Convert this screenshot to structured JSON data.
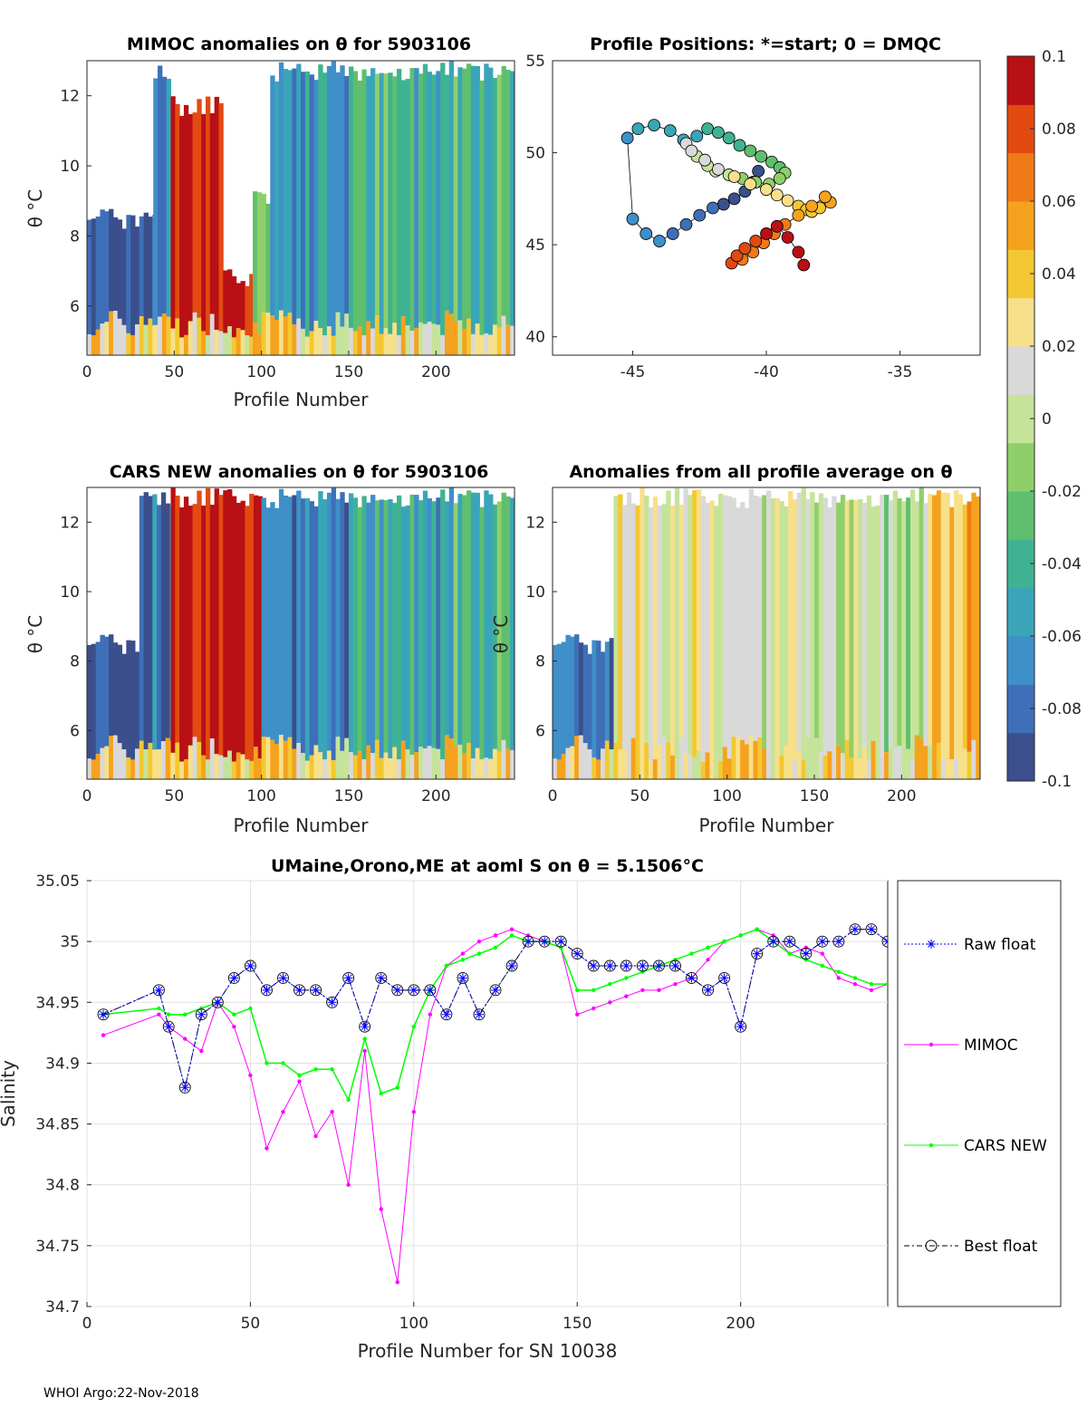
{
  "footer": "WHOI Argo:22-Nov-2018",
  "colors": {
    "mimoc": "#ff00ff",
    "cars": "#00ff00",
    "raw": "#0000ff",
    "best": "#000000",
    "colormap": [
      "#3b4f8c",
      "#3e6fb8",
      "#3f8fc9",
      "#3aa5b8",
      "#3fb391",
      "#5fbf6e",
      "#8fcf6a",
      "#c6e39a",
      "#d9d9d9",
      "#f6e08a",
      "#f3c832",
      "#f5a21e",
      "#f07a15",
      "#e24a12",
      "#b81014"
    ]
  },
  "panels": {
    "mimoc": {
      "title": "MIMOC anomalies on θ  for 5903106",
      "xlabel": "Profile Number",
      "ylabel": "θ °C",
      "xticks": [
        "0",
        "50",
        "100",
        "150",
        "200"
      ],
      "yticks": [
        "6",
        "8",
        "10",
        "12"
      ]
    },
    "positions": {
      "title": "Profile Positions: *=start; 0 = DMQC",
      "xticks": [
        "-45",
        "-40",
        "-35"
      ],
      "yticks": [
        "40",
        "45",
        "50",
        "55"
      ]
    },
    "cars": {
      "title": "CARS NEW anomalies on θ for 5903106",
      "xlabel": "Profile Number",
      "ylabel": "θ °C",
      "xticks": [
        "0",
        "50",
        "100",
        "150",
        "200"
      ],
      "yticks": [
        "6",
        "8",
        "10",
        "12"
      ]
    },
    "allavg": {
      "title": "Anomalies from all profile average on θ",
      "xlabel": "Profile Number",
      "ylabel": "θ °C",
      "xticks": [
        "0",
        "50",
        "100",
        "150",
        "200"
      ],
      "yticks": [
        "6",
        "8",
        "10",
        "12"
      ]
    }
  },
  "colorbar": {
    "ticks": [
      "0.1",
      "0.08",
      "0.06",
      "0.04",
      "0.02",
      "0",
      "-0.02",
      "-0.04",
      "-0.06",
      "-0.08",
      "-0.1"
    ]
  },
  "chart_data": [
    {
      "type": "heatmap",
      "name": "mimoc-anomalies",
      "title": "MIMOC anomalies on θ  for 5903106",
      "xlabel": "Profile Number",
      "ylabel": "θ °C",
      "xlim": [
        0,
        245
      ],
      "ylim": [
        4.6,
        13
      ],
      "clim": [
        -0.1,
        0.1
      ],
      "segments": [
        {
          "x": [
            0,
            38
          ],
          "ytop": 8.8,
          "v": -0.085
        },
        {
          "x": [
            38,
            48
          ],
          "ytop": 13,
          "v": -0.07
        },
        {
          "x": [
            48,
            78
          ],
          "ytop": 12,
          "v": 0.1
        },
        {
          "x": [
            78,
            95
          ],
          "ytop": 7.1,
          "v": 0.1
        },
        {
          "x": [
            95,
            105
          ],
          "ytop": 9.5,
          "v": -0.02
        },
        {
          "x": [
            105,
            150
          ],
          "ytop": 13,
          "v": -0.06
        },
        {
          "x": [
            150,
            210
          ],
          "ytop": 13,
          "v": -0.04
        },
        {
          "x": [
            210,
            245
          ],
          "ytop": 13,
          "v": -0.03
        }
      ]
    },
    {
      "type": "scatter",
      "name": "profile-positions",
      "title": "Profile Positions: *=start; 0 = DMQC",
      "xlim": [
        -48,
        -32
      ],
      "ylim": [
        39,
        55
      ],
      "colorby": "profile-number",
      "lon": [
        -40.3,
        -40.5,
        -40.8,
        -41.2,
        -41.6,
        -42.0,
        -42.5,
        -43.0,
        -43.5,
        -44.0,
        -44.5,
        -45.0,
        -45.2,
        -44.8,
        -44.2,
        -43.6,
        -43.1,
        -42.6,
        -42.2,
        -41.8,
        -41.4,
        -41.0,
        -40.6,
        -40.2,
        -39.8,
        -39.5,
        -39.3,
        -39.5,
        -39.9,
        -40.4,
        -40.9,
        -41.4,
        -41.9,
        -42.2,
        -42.6,
        -43.0,
        -42.8,
        -42.3,
        -41.8,
        -41.2,
        -40.6,
        -40.0,
        -39.6,
        -39.2,
        -38.8,
        -38.5,
        -38.3,
        -38.0,
        -37.6,
        -37.8,
        -38.3,
        -38.8,
        -39.3,
        -39.7,
        -40.1,
        -40.5,
        -40.9,
        -41.3,
        -41.1,
        -40.8,
        -40.4,
        -40.0,
        -39.6,
        -39.2,
        -38.8,
        -38.6
      ],
      "lat": [
        49.0,
        48.4,
        47.9,
        47.5,
        47.2,
        47.0,
        46.6,
        46.1,
        45.6,
        45.2,
        45.6,
        46.4,
        50.8,
        51.3,
        51.5,
        51.2,
        50.7,
        50.9,
        51.3,
        51.1,
        50.8,
        50.4,
        50.1,
        49.8,
        49.5,
        49.2,
        48.9,
        48.6,
        48.3,
        48.4,
        48.6,
        48.8,
        49.0,
        49.3,
        49.8,
        50.5,
        50.1,
        49.6,
        49.1,
        48.7,
        48.3,
        48.0,
        47.7,
        47.4,
        47.1,
        46.9,
        46.8,
        47.0,
        47.3,
        47.6,
        47.1,
        46.6,
        46.1,
        45.6,
        45.1,
        44.6,
        44.2,
        44.0,
        44.4,
        44.8,
        45.2,
        45.6,
        46.0,
        45.4,
        44.6,
        43.9
      ]
    },
    {
      "type": "heatmap",
      "name": "cars-anomalies",
      "title": "CARS NEW anomalies on θ for 5903106",
      "xlabel": "Profile Number",
      "ylabel": "θ °C",
      "xlim": [
        0,
        245
      ],
      "ylim": [
        4.6,
        13
      ],
      "clim": [
        -0.1,
        0.1
      ],
      "segments": [
        {
          "x": [
            0,
            30
          ],
          "ytop": 8.8,
          "v": -0.09
        },
        {
          "x": [
            30,
            48
          ],
          "ytop": 13,
          "v": -0.08
        },
        {
          "x": [
            48,
            100
          ],
          "ytop": 13,
          "v": 0.1
        },
        {
          "x": [
            100,
            150
          ],
          "ytop": 13,
          "v": -0.07
        },
        {
          "x": [
            150,
            210
          ],
          "ytop": 13,
          "v": -0.05
        },
        {
          "x": [
            210,
            245
          ],
          "ytop": 13,
          "v": -0.03
        }
      ]
    },
    {
      "type": "heatmap",
      "name": "all-profile-anomalies",
      "title": "Anomalies from all profile average on θ",
      "xlabel": "Profile Number",
      "ylabel": "θ °C",
      "xlim": [
        0,
        245
      ],
      "ylim": [
        4.6,
        13
      ],
      "clim": [
        -0.1,
        0.1
      ],
      "segments": [
        {
          "x": [
            0,
            35
          ],
          "ytop": 8.8,
          "v": -0.07
        },
        {
          "x": [
            35,
            100
          ],
          "ytop": 13,
          "v": 0.02
        },
        {
          "x": [
            100,
            150
          ],
          "ytop": 13,
          "v": 0.01
        },
        {
          "x": [
            150,
            215
          ],
          "ytop": 13,
          "v": 0.0
        },
        {
          "x": [
            215,
            245
          ],
          "ytop": 13,
          "v": 0.05
        }
      ]
    },
    {
      "type": "line",
      "name": "salinity-on-theta",
      "title": "UMaine,Orono,ME at aoml S on θ = 5.1506°C",
      "xlabel": "Profile Number for SN 10038",
      "ylabel": "Salinity",
      "xlim": [
        0,
        245
      ],
      "ylim": [
        34.7,
        35.05
      ],
      "xticks": [
        "0",
        "50",
        "100",
        "150",
        "200"
      ],
      "yticks": [
        "34.7",
        "34.75",
        "34.8",
        "34.85",
        "34.9",
        "34.95",
        "35",
        "35.05"
      ],
      "legend": [
        "Raw float",
        "MIMOC",
        "CARS NEW",
        "Best float"
      ],
      "x": [
        5,
        22,
        25,
        30,
        35,
        40,
        45,
        50,
        55,
        60,
        65,
        70,
        75,
        80,
        85,
        90,
        95,
        100,
        105,
        110,
        115,
        120,
        125,
        130,
        135,
        140,
        145,
        150,
        155,
        160,
        165,
        170,
        175,
        180,
        185,
        190,
        195,
        200,
        205,
        210,
        215,
        220,
        225,
        230,
        235,
        240,
        245
      ],
      "series": [
        {
          "name": "Raw float",
          "values": [
            34.94,
            34.96,
            34.93,
            34.88,
            34.94,
            34.95,
            34.97,
            34.98,
            34.96,
            34.97,
            34.96,
            34.96,
            34.95,
            34.97,
            34.93,
            34.97,
            34.96,
            34.96,
            34.96,
            34.94,
            34.97,
            34.94,
            34.96,
            34.98,
            35.0,
            35.0,
            35.0,
            34.99,
            34.98,
            34.98,
            34.98,
            34.98,
            34.98,
            34.98,
            34.97,
            34.96,
            34.97,
            34.93,
            34.99,
            35.0,
            35.0,
            34.99,
            35.0,
            35.0,
            35.01,
            35.01,
            35.0
          ]
        },
        {
          "name": "MIMOC",
          "values": [
            34.923,
            34.94,
            34.93,
            34.92,
            34.91,
            34.95,
            34.93,
            34.89,
            34.83,
            34.86,
            34.885,
            34.84,
            34.86,
            34.8,
            34.91,
            34.78,
            34.72,
            34.86,
            34.94,
            34.98,
            34.99,
            35.0,
            35.005,
            35.01,
            35.005,
            35.0,
            34.995,
            34.94,
            34.945,
            34.95,
            34.955,
            34.96,
            34.96,
            34.965,
            34.97,
            34.985,
            35.0,
            35.005,
            35.01,
            35.005,
            34.99,
            34.995,
            34.99,
            34.97,
            34.965,
            34.96,
            34.965
          ]
        },
        {
          "name": "CARS NEW",
          "values": [
            34.94,
            34.945,
            34.94,
            34.94,
            34.945,
            34.95,
            34.94,
            34.945,
            34.9,
            34.9,
            34.89,
            34.895,
            34.895,
            34.87,
            34.92,
            34.875,
            34.88,
            34.93,
            34.96,
            34.98,
            34.985,
            34.99,
            34.995,
            35.005,
            35.0,
            35.0,
            34.995,
            34.96,
            34.96,
            34.965,
            34.97,
            34.975,
            34.98,
            34.985,
            34.99,
            34.995,
            35.0,
            35.005,
            35.01,
            35.0,
            34.99,
            34.985,
            34.98,
            34.975,
            34.97,
            34.965,
            34.965
          ]
        },
        {
          "name": "Best float",
          "values": [
            34.94,
            34.96,
            34.93,
            34.88,
            34.94,
            34.95,
            34.97,
            34.98,
            34.96,
            34.97,
            34.96,
            34.96,
            34.95,
            34.97,
            34.93,
            34.97,
            34.96,
            34.96,
            34.96,
            34.94,
            34.97,
            34.94,
            34.96,
            34.98,
            35.0,
            35.0,
            35.0,
            34.99,
            34.98,
            34.98,
            34.98,
            34.98,
            34.98,
            34.98,
            34.97,
            34.96,
            34.97,
            34.93,
            34.99,
            35.0,
            35.0,
            34.99,
            35.0,
            35.0,
            35.01,
            35.01,
            35.0
          ]
        }
      ]
    }
  ]
}
